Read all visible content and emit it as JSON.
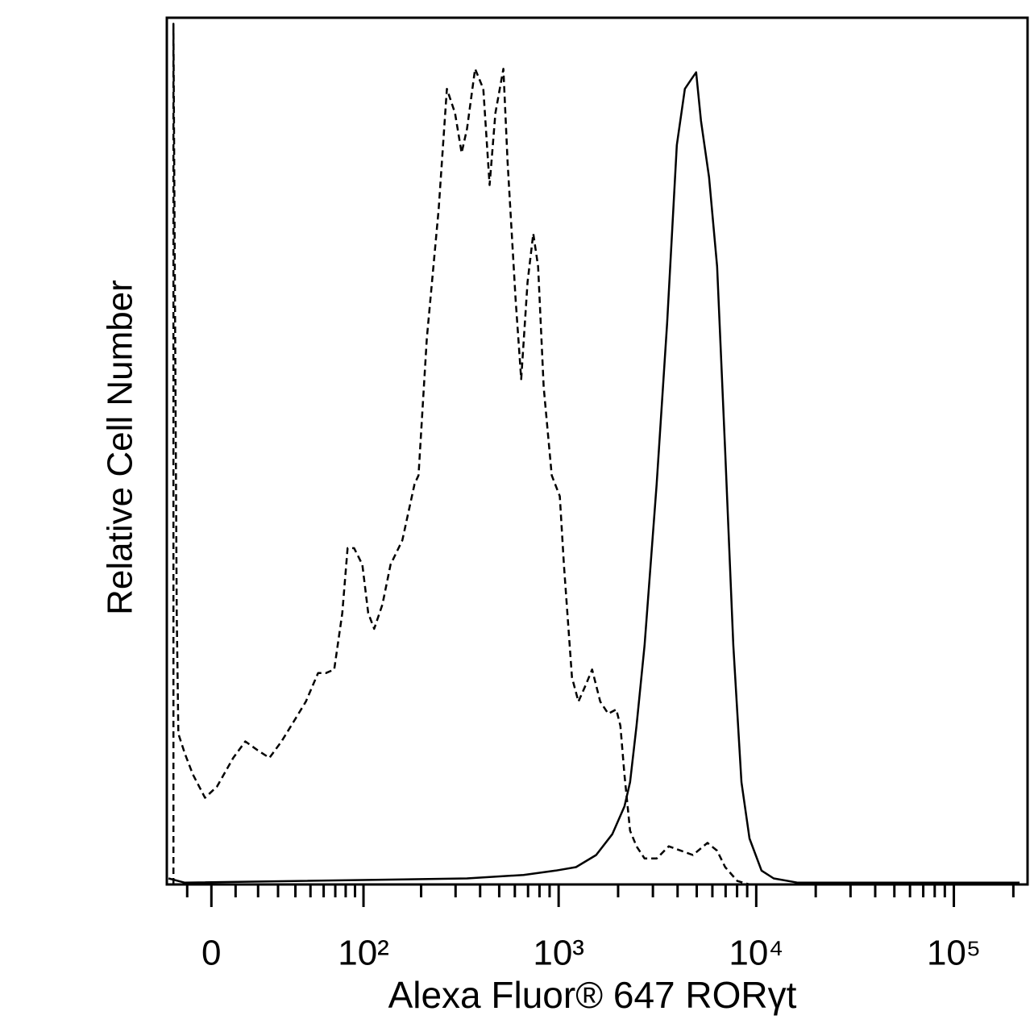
{
  "chart_data": {
    "type": "line",
    "xlabel": "Alexa Fluor® 647  RORγt",
    "ylabel": "Relative Cell Number",
    "xscale": "biexponential",
    "xlim": [
      -19,
      236000
    ],
    "ylim": [
      0,
      100
    ],
    "xticks": [
      0,
      {
        "value": 100,
        "label": "10²"
      },
      {
        "value": 1000,
        "label": "10³"
      },
      {
        "value": 10000,
        "label": "10⁴"
      },
      {
        "value": 100000,
        "label": "10⁵"
      }
    ],
    "xminorticks": [
      -10,
      10,
      20,
      30,
      40,
      50,
      60,
      70,
      80,
      90,
      200,
      300,
      400,
      500,
      600,
      700,
      800,
      900,
      2000,
      3000,
      4000,
      5000,
      6000,
      7000,
      8000,
      9000,
      20000,
      30000,
      40000,
      50000,
      60000,
      70000,
      80000,
      90000,
      200000
    ],
    "grid": false,
    "series": [
      {
        "color": "#000000",
        "dash": true,
        "x": [
          -16,
          -16,
          -14.5,
          -13.8,
          -11,
          -7.6,
          -2.6,
          2.3,
          9,
          14.2,
          19.7,
          25.5,
          31.9,
          39,
          46.8,
          55.6,
          62,
          69,
          76.6,
          82,
          89,
          98.6,
          106,
          114,
          126,
          139,
          160,
          185,
          194,
          214,
          246,
          271,
          298,
          322,
          343,
          377,
          415,
          447,
          478,
          525,
          551,
          605,
          646,
          696,
          744,
          787,
          840,
          923,
          1014,
          1063,
          1168,
          1259,
          1370,
          1478,
          1624,
          1783,
          1959,
          2054,
          2153,
          2300,
          2478,
          2723,
          3135,
          3609,
          4155,
          4785,
          5664,
          6340,
          6966,
          8026,
          9245
        ],
        "values": [
          0,
          99.3,
          31.3,
          17.4,
          15.1,
          12.7,
          10,
          11.3,
          14.6,
          16.5,
          15.5,
          14.6,
          16.5,
          18.8,
          21.1,
          24.4,
          24.4,
          24.8,
          31.3,
          38.8,
          38.8,
          36.9,
          31.3,
          29.5,
          32.3,
          36.9,
          39.7,
          46.2,
          47.2,
          63,
          77.9,
          91.8,
          89,
          84.4,
          87.2,
          94.1,
          91.8,
          80.7,
          89,
          94.1,
          83.4,
          67.6,
          58.3,
          69.5,
          75.1,
          71.3,
          57.4,
          47.2,
          44.8,
          36.9,
          23.9,
          21.1,
          23,
          24.8,
          21.1,
          19.7,
          20.2,
          18.3,
          12.7,
          6.2,
          4.4,
          3,
          3,
          4.4,
          3.9,
          3.4,
          4.8,
          3.9,
          2,
          0.4,
          0
        ]
      },
      {
        "color": "#000000",
        "dash": false,
        "x": [
          -18.2,
          -11,
          343,
          664,
          967,
          1224,
          1549,
          1868,
          2153,
          2300,
          2478,
          2723,
          3135,
          3543,
          3965,
          4356,
          4695,
          4967,
          5255,
          5771,
          6340,
          6966,
          7655,
          8414,
          9245,
          10640,
          12250,
          16250,
          215000
        ],
        "values": [
          0.7,
          0.2,
          0.7,
          1.1,
          1.6,
          2,
          3.4,
          5.8,
          9,
          11.8,
          18.3,
          27.6,
          46.2,
          64.8,
          85.3,
          91.8,
          92.9,
          93.7,
          88.1,
          81.6,
          71.3,
          50,
          27.6,
          11.8,
          5.3,
          1.6,
          0.7,
          0.2,
          0.2
        ]
      }
    ]
  }
}
